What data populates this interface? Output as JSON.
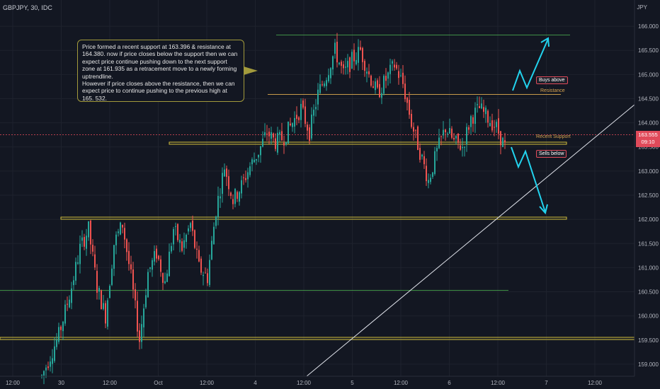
{
  "header": {
    "symbol": "GBPJPY, 30, IDC",
    "currency": "JPY"
  },
  "annotation": {
    "lines": [
      "Price formed a recent support at 163.396 & resistance at 164.380. now if price closes below the support then we can expect price continue pushing down to the next support zone at 161.935 as a retracement move to a newly forming uptrendline.",
      "However if price closes above the resistance, then we can expect price to continue pushing to the previous high at 165. 532."
    ]
  },
  "labels": {
    "buys_above": "Buys above",
    "resistance": "Resistance",
    "recent_support": "Recent Support",
    "sells_below": "Sells below"
  },
  "price_tag": {
    "value": "163.555",
    "countdown": "09:10"
  },
  "colors": {
    "up": "#26a69a",
    "down": "#ef5350",
    "resistance_line": "#c79a4a",
    "support_zone": "#d4c13c",
    "green_level": "#4caf50",
    "trendline": "#e0e3eb",
    "arrow": "#22d3ee",
    "price_line": "#e04a5a"
  },
  "chart_data": {
    "type": "candlestick",
    "timeframe": "30",
    "ylim": [
      158.75,
      166.25
    ],
    "y_ticks": [
      "159.000",
      "159.500",
      "160.000",
      "160.500",
      "161.000",
      "161.500",
      "162.000",
      "162.500",
      "163.000",
      "163.500",
      "164.000",
      "164.500",
      "165.000",
      "165.500",
      "166.000"
    ],
    "x_ticks": [
      "12:00",
      "30",
      "12:00",
      "Oct",
      "12:00",
      "4",
      "12:00",
      "5",
      "12:00",
      "6",
      "12:00",
      "7",
      "12:00"
    ],
    "levels": {
      "previous_high": 165.532,
      "resistance": 164.38,
      "recent_support": 163.396,
      "next_support": 161.935,
      "green_level": 160.5,
      "lower_zone": 159.5,
      "last_price": 163.555
    },
    "path": [
      [
        0,
        158.75
      ],
      [
        4,
        159.6
      ],
      [
        7,
        160.6
      ],
      [
        9,
        161.4
      ],
      [
        11,
        161.8
      ],
      [
        13,
        160.6
      ],
      [
        15,
        160.0
      ],
      [
        17,
        161.5
      ],
      [
        19,
        161.9
      ],
      [
        21,
        160.8
      ],
      [
        23,
        159.5
      ],
      [
        25,
        160.9
      ],
      [
        27,
        161.3
      ],
      [
        29,
        160.7
      ],
      [
        31,
        161.8
      ],
      [
        33,
        161.4
      ],
      [
        35,
        161.9
      ],
      [
        37,
        161.0
      ],
      [
        39,
        160.8
      ],
      [
        41,
        162.2
      ],
      [
        43,
        163.1
      ],
      [
        45,
        162.4
      ],
      [
        47,
        162.7
      ],
      [
        49,
        163.1
      ],
      [
        51,
        163.4
      ],
      [
        53,
        163.8
      ],
      [
        55,
        163.6
      ],
      [
        57,
        163.7
      ],
      [
        59,
        164.0
      ],
      [
        61,
        164.3
      ],
      [
        63,
        163.8
      ],
      [
        65,
        164.6
      ],
      [
        67,
        165.0
      ],
      [
        69,
        165.5
      ],
      [
        71,
        165.0
      ],
      [
        73,
        165.3
      ],
      [
        75,
        165.5
      ],
      [
        77,
        165.0
      ],
      [
        79,
        164.6
      ],
      [
        81,
        164.9
      ],
      [
        83,
        165.2
      ],
      [
        85,
        164.8
      ],
      [
        87,
        164.0
      ],
      [
        89,
        163.4
      ],
      [
        91,
        162.8
      ],
      [
        93,
        163.4
      ],
      [
        95,
        163.9
      ],
      [
        97,
        163.6
      ],
      [
        99,
        163.5
      ],
      [
        101,
        164.1
      ],
      [
        103,
        164.3
      ],
      [
        105,
        164.1
      ],
      [
        107,
        163.9
      ],
      [
        109,
        163.5
      ]
    ]
  }
}
